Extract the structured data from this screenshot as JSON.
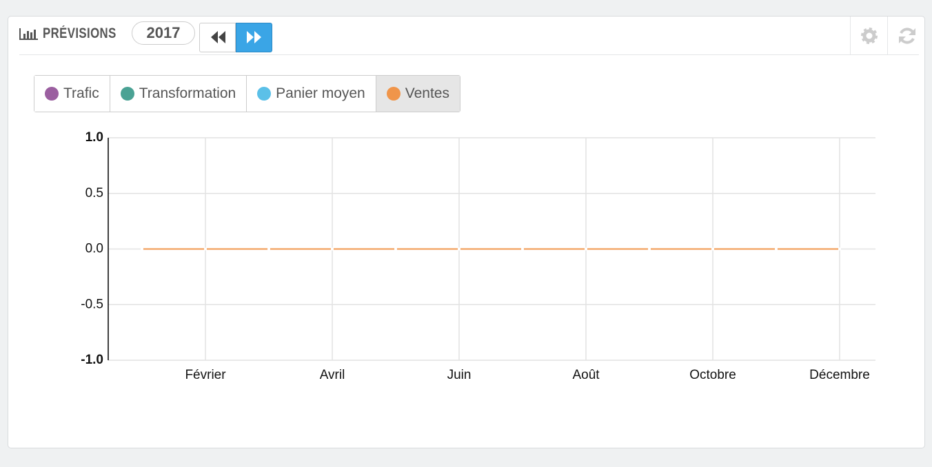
{
  "header": {
    "title": "PRÉVISIONS",
    "year": "2017"
  },
  "chart_data": {
    "type": "line",
    "categories": [
      null,
      "Février",
      null,
      "Avril",
      null,
      "Juin",
      null,
      "Août",
      null,
      "Octobre",
      null,
      "Décembre"
    ],
    "series": [
      {
        "name": "Trafic",
        "color": "#9b5fa0"
      },
      {
        "name": "Transformation",
        "color": "#4aa294"
      },
      {
        "name": "Panier moyen",
        "color": "#5bc0e8"
      },
      {
        "name": "Ventes",
        "color": "#f0954a",
        "values": [
          0,
          0,
          0,
          0,
          0,
          0,
          0,
          0,
          0,
          0,
          0,
          0
        ]
      }
    ],
    "ylim": [
      -1,
      1
    ],
    "yticks": [
      {
        "value": 1,
        "label": "1.0"
      },
      {
        "value": 0.5,
        "label": "0.5"
      },
      {
        "value": 0,
        "label": "0.0"
      },
      {
        "value": -0.5,
        "label": "-0.5"
      },
      {
        "value": -1,
        "label": "-1.0"
      }
    ],
    "grid": true
  }
}
